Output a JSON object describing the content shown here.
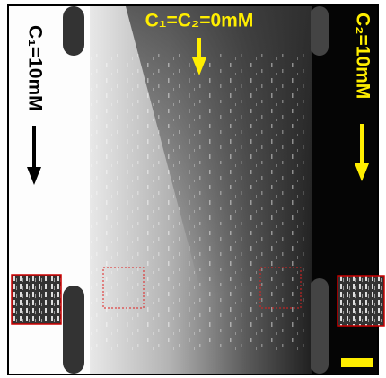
{
  "labels": {
    "left": "C₁=10mM",
    "top": "C₁=C₂=0mM",
    "right": "C₂=10mM"
  }
}
